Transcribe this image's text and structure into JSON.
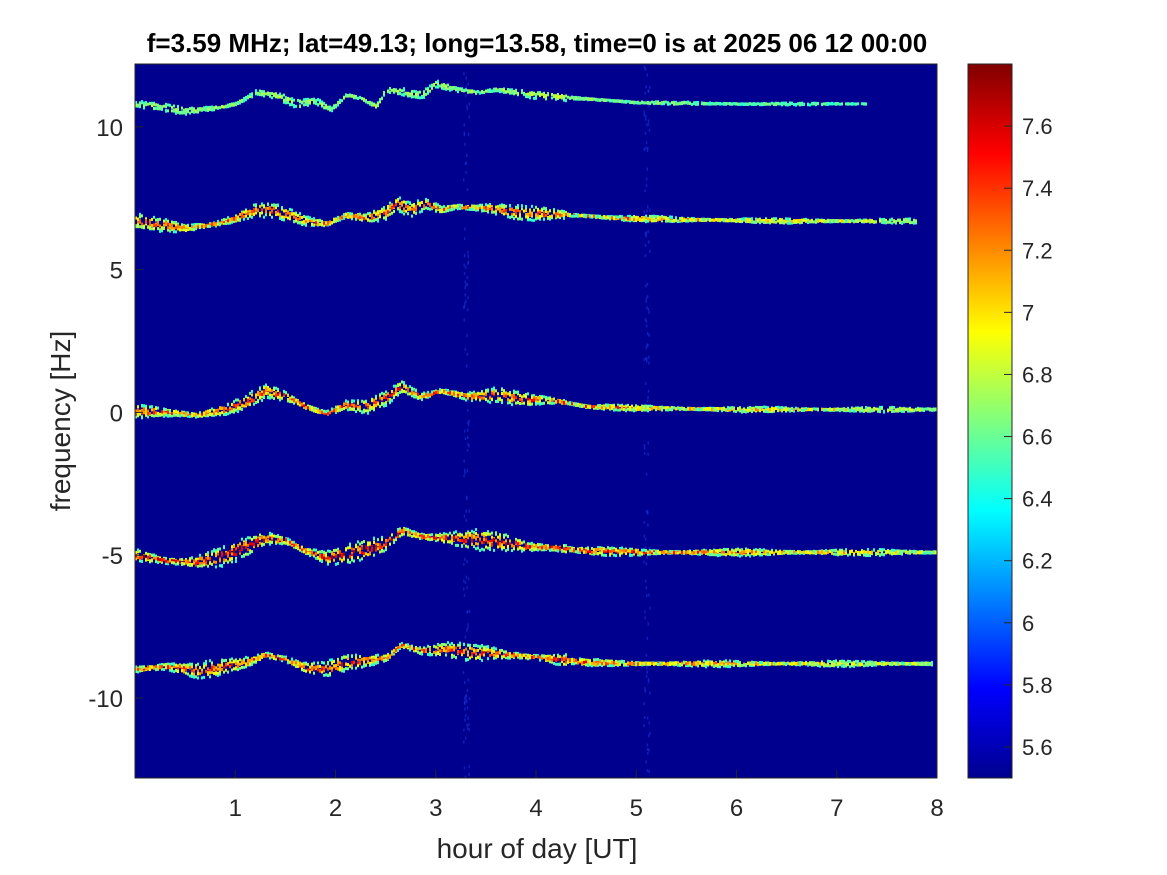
{
  "chart_data": {
    "type": "heatmap",
    "title": "f=3.59 MHz;  lat=49.13; long=13.58, time=0 is at 2025 06 12 00:00",
    "xlabel": "hour of day [UT]",
    "ylabel": "frequency [Hz]",
    "xlim": [
      0,
      8
    ],
    "ylim": [
      -12.8,
      12.2
    ],
    "x_ticks": [
      1,
      2,
      3,
      4,
      5,
      6,
      7,
      8
    ],
    "x_tick_labels": [
      "1",
      "2",
      "3",
      "4",
      "5",
      "6",
      "7",
      "8"
    ],
    "y_ticks": [
      10,
      5,
      0,
      -5,
      -10
    ],
    "y_tick_labels": [
      "10",
      "5",
      "0",
      "-5",
      "-10"
    ],
    "colorbar": {
      "colormap": "jet",
      "clim": [
        5.5,
        7.8
      ],
      "ticks": [
        7.6,
        7.4,
        7.2,
        7,
        6.8,
        6.6,
        6.4,
        6.2,
        6,
        5.8,
        5.6
      ],
      "tick_labels": [
        "7.6",
        "7.4",
        "7.2",
        "7",
        "6.8",
        "6.6",
        "6.4",
        "6.2",
        "6",
        "5.8",
        "5.6"
      ]
    },
    "background_color": "#00008f",
    "traces": [
      {
        "base": 10.8,
        "strength": 0.45,
        "width": 0.18,
        "end_hour": 7.3,
        "points": [
          [
            0,
            10.8
          ],
          [
            0.25,
            10.7
          ],
          [
            0.5,
            10.55
          ],
          [
            0.8,
            10.65
          ],
          [
            1.0,
            10.8
          ],
          [
            1.2,
            11.2
          ],
          [
            1.4,
            11.1
          ],
          [
            1.6,
            10.8
          ],
          [
            1.8,
            10.9
          ],
          [
            1.95,
            10.6
          ],
          [
            2.1,
            11.1
          ],
          [
            2.25,
            11.0
          ],
          [
            2.4,
            10.7
          ],
          [
            2.5,
            11.3
          ],
          [
            2.7,
            11.2
          ],
          [
            2.85,
            11.1
          ],
          [
            3.0,
            11.5
          ],
          [
            3.2,
            11.3
          ],
          [
            3.4,
            11.2
          ],
          [
            3.6,
            11.3
          ],
          [
            3.9,
            11.15
          ],
          [
            4.2,
            11.05
          ],
          [
            4.6,
            10.95
          ],
          [
            5.0,
            10.85
          ],
          [
            6.0,
            10.8
          ],
          [
            7.3,
            10.8
          ]
        ]
      },
      {
        "base": 6.7,
        "strength": 0.85,
        "width": 0.25,
        "end_hour": 7.8,
        "points": [
          [
            0,
            6.7
          ],
          [
            0.2,
            6.6
          ],
          [
            0.5,
            6.45
          ],
          [
            0.8,
            6.6
          ],
          [
            1.0,
            6.8
          ],
          [
            1.2,
            7.1
          ],
          [
            1.4,
            7.05
          ],
          [
            1.7,
            6.7
          ],
          [
            1.9,
            6.6
          ],
          [
            2.1,
            6.9
          ],
          [
            2.3,
            6.8
          ],
          [
            2.5,
            7.0
          ],
          [
            2.6,
            7.3
          ],
          [
            2.75,
            7.1
          ],
          [
            2.9,
            7.3
          ],
          [
            3.05,
            7.1
          ],
          [
            3.2,
            7.2
          ],
          [
            3.5,
            7.15
          ],
          [
            3.8,
            7.0
          ],
          [
            4.1,
            6.95
          ],
          [
            4.4,
            6.9
          ],
          [
            4.8,
            6.8
          ],
          [
            5.5,
            6.75
          ],
          [
            6.5,
            6.7
          ],
          [
            7.8,
            6.7
          ]
        ]
      },
      {
        "base": 0.1,
        "strength": 0.88,
        "width": 0.25,
        "end_hour": 8.0,
        "points": [
          [
            0,
            0.05
          ],
          [
            0.3,
            0.0
          ],
          [
            0.6,
            -0.1
          ],
          [
            0.9,
            0.1
          ],
          [
            1.1,
            0.35
          ],
          [
            1.3,
            0.75
          ],
          [
            1.5,
            0.55
          ],
          [
            1.7,
            0.2
          ],
          [
            1.9,
            -0.05
          ],
          [
            2.1,
            0.25
          ],
          [
            2.3,
            0.2
          ],
          [
            2.5,
            0.5
          ],
          [
            2.65,
            0.9
          ],
          [
            2.85,
            0.55
          ],
          [
            3.05,
            0.75
          ],
          [
            3.3,
            0.55
          ],
          [
            3.6,
            0.6
          ],
          [
            3.9,
            0.45
          ],
          [
            4.2,
            0.4
          ],
          [
            4.5,
            0.2
          ],
          [
            5.0,
            0.15
          ],
          [
            6.0,
            0.1
          ],
          [
            8.0,
            0.1
          ]
        ]
      },
      {
        "base": -4.9,
        "strength": 1.0,
        "width": 0.33,
        "end_hour": 8.0,
        "points": [
          [
            0,
            -5.0
          ],
          [
            0.3,
            -5.2
          ],
          [
            0.6,
            -5.25
          ],
          [
            0.9,
            -5.0
          ],
          [
            1.1,
            -4.7
          ],
          [
            1.3,
            -4.4
          ],
          [
            1.5,
            -4.5
          ],
          [
            1.7,
            -4.85
          ],
          [
            1.9,
            -5.1
          ],
          [
            2.1,
            -4.95
          ],
          [
            2.3,
            -4.8
          ],
          [
            2.5,
            -4.6
          ],
          [
            2.65,
            -4.15
          ],
          [
            2.85,
            -4.35
          ],
          [
            3.05,
            -4.4
          ],
          [
            3.3,
            -4.45
          ],
          [
            3.6,
            -4.5
          ],
          [
            3.9,
            -4.7
          ],
          [
            4.2,
            -4.75
          ],
          [
            4.5,
            -4.85
          ],
          [
            5.0,
            -4.9
          ],
          [
            6.0,
            -4.9
          ],
          [
            8.0,
            -4.9
          ]
        ]
      },
      {
        "base": -8.8,
        "strength": 0.9,
        "width": 0.28,
        "end_hour": 7.95,
        "points": [
          [
            0,
            -9.0
          ],
          [
            0.3,
            -8.9
          ],
          [
            0.6,
            -9.05
          ],
          [
            0.9,
            -8.9
          ],
          [
            1.1,
            -8.75
          ],
          [
            1.3,
            -8.5
          ],
          [
            1.5,
            -8.65
          ],
          [
            1.7,
            -8.95
          ],
          [
            1.9,
            -9.0
          ],
          [
            2.1,
            -8.75
          ],
          [
            2.3,
            -8.7
          ],
          [
            2.5,
            -8.6
          ],
          [
            2.65,
            -8.15
          ],
          [
            2.85,
            -8.35
          ],
          [
            3.05,
            -8.3
          ],
          [
            3.3,
            -8.4
          ],
          [
            3.6,
            -8.45
          ],
          [
            3.9,
            -8.55
          ],
          [
            4.2,
            -8.65
          ],
          [
            4.5,
            -8.75
          ],
          [
            5.0,
            -8.8
          ],
          [
            6.0,
            -8.8
          ],
          [
            7.95,
            -8.8
          ]
        ]
      }
    ],
    "vertical_noise_lines": [
      3.3,
      5.1
    ]
  }
}
